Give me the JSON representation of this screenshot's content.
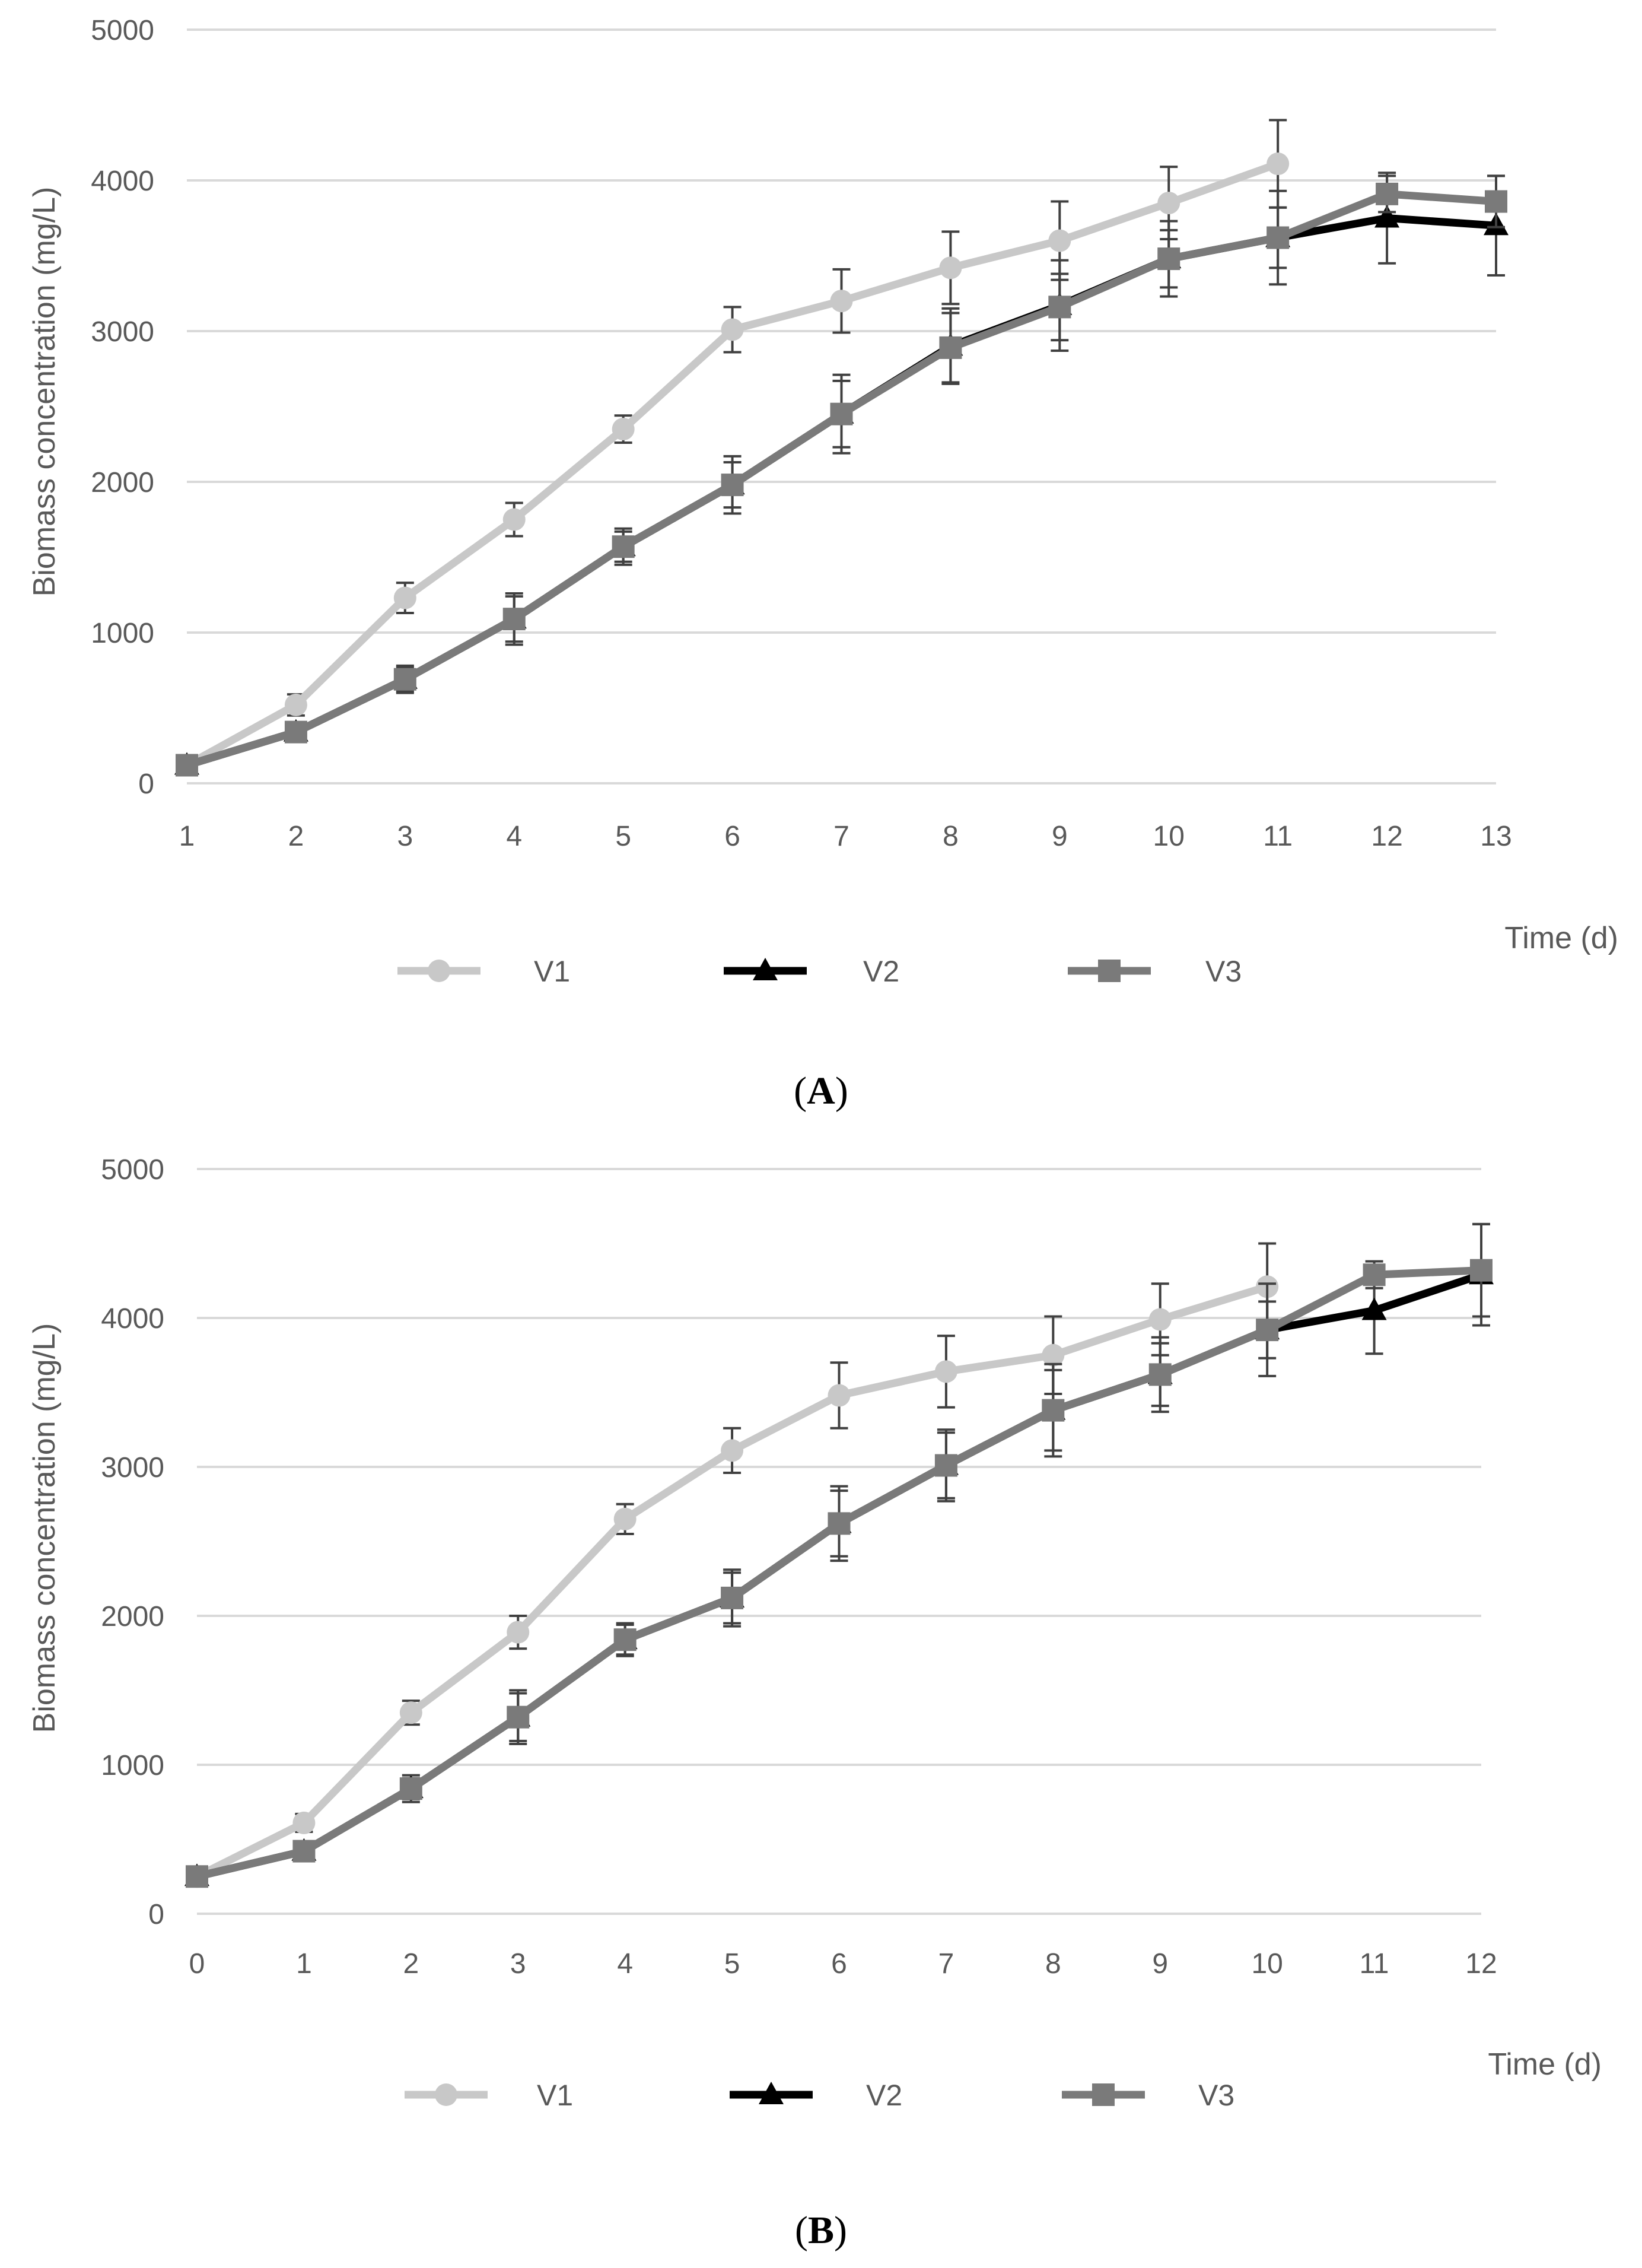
{
  "colors": {
    "V1": "#c8c8c8",
    "V2": "#000000",
    "V3": "#7a7a7a"
  },
  "chart_data": [
    {
      "type": "line",
      "panel": "A",
      "ylabel": "Biomass concentration (mg/L)",
      "xlabel": "Time (d)",
      "ylim": [
        0,
        5000
      ],
      "yticks": [
        0,
        1000,
        2000,
        3000,
        4000,
        5000
      ],
      "x": [
        1,
        2,
        3,
        4,
        5,
        6,
        7,
        8,
        9,
        10,
        11,
        12,
        13
      ],
      "legend": [
        "V1",
        "V2",
        "V3"
      ],
      "series": [
        {
          "name": "V1",
          "marker": "circle",
          "values": [
            120,
            520,
            1230,
            1750,
            2350,
            3010,
            3200,
            3420,
            3600,
            3850,
            4110,
            null,
            null
          ],
          "errors": [
            40,
            70,
            100,
            110,
            90,
            150,
            210,
            240,
            260,
            240,
            290,
            null,
            null
          ]
        },
        {
          "name": "V2",
          "marker": "triangle",
          "values": [
            120,
            340,
            690,
            1090,
            1570,
            1980,
            2450,
            2900,
            3170,
            3480,
            3620,
            3750,
            3700
          ],
          "errors": [
            30,
            60,
            90,
            170,
            120,
            190,
            260,
            250,
            300,
            250,
            310,
            300,
            330
          ]
        },
        {
          "name": "V3",
          "marker": "square",
          "values": [
            120,
            340,
            690,
            1090,
            1570,
            1980,
            2450,
            2890,
            3160,
            3480,
            3620,
            3910,
            3860
          ],
          "errors": [
            30,
            50,
            80,
            150,
            100,
            150,
            220,
            230,
            220,
            190,
            200,
            120,
            170
          ]
        }
      ]
    },
    {
      "type": "line",
      "panel": "B",
      "ylabel": "Biomass concentration (mg/L)",
      "xlabel": "Time (d)",
      "ylim": [
        0,
        5000
      ],
      "yticks": [
        0,
        1000,
        2000,
        3000,
        4000,
        5000
      ],
      "x": [
        0,
        1,
        2,
        3,
        4,
        5,
        6,
        7,
        8,
        9,
        10,
        11,
        12
      ],
      "legend": [
        "V1",
        "V2",
        "V3"
      ],
      "series": [
        {
          "name": "V1",
          "marker": "circle",
          "values": [
            250,
            610,
            1350,
            1890,
            2650,
            3110,
            3480,
            3640,
            3750,
            3990,
            4210,
            null,
            null
          ],
          "errors": [
            40,
            60,
            80,
            110,
            100,
            150,
            220,
            240,
            260,
            240,
            290,
            null,
            null
          ]
        },
        {
          "name": "V2",
          "marker": "triangle",
          "values": [
            250,
            420,
            840,
            1320,
            1840,
            2120,
            2620,
            3010,
            3380,
            3620,
            3920,
            4050,
            4290
          ],
          "errors": [
            30,
            50,
            90,
            180,
            110,
            190,
            250,
            240,
            310,
            250,
            310,
            290,
            340
          ]
        },
        {
          "name": "V3",
          "marker": "square",
          "values": [
            250,
            420,
            840,
            1320,
            1840,
            2120,
            2620,
            3010,
            3380,
            3620,
            3920,
            4290,
            4320
          ],
          "errors": [
            30,
            40,
            70,
            160,
            100,
            170,
            220,
            220,
            270,
            210,
            190,
            90,
            310
          ]
        }
      ]
    }
  ]
}
